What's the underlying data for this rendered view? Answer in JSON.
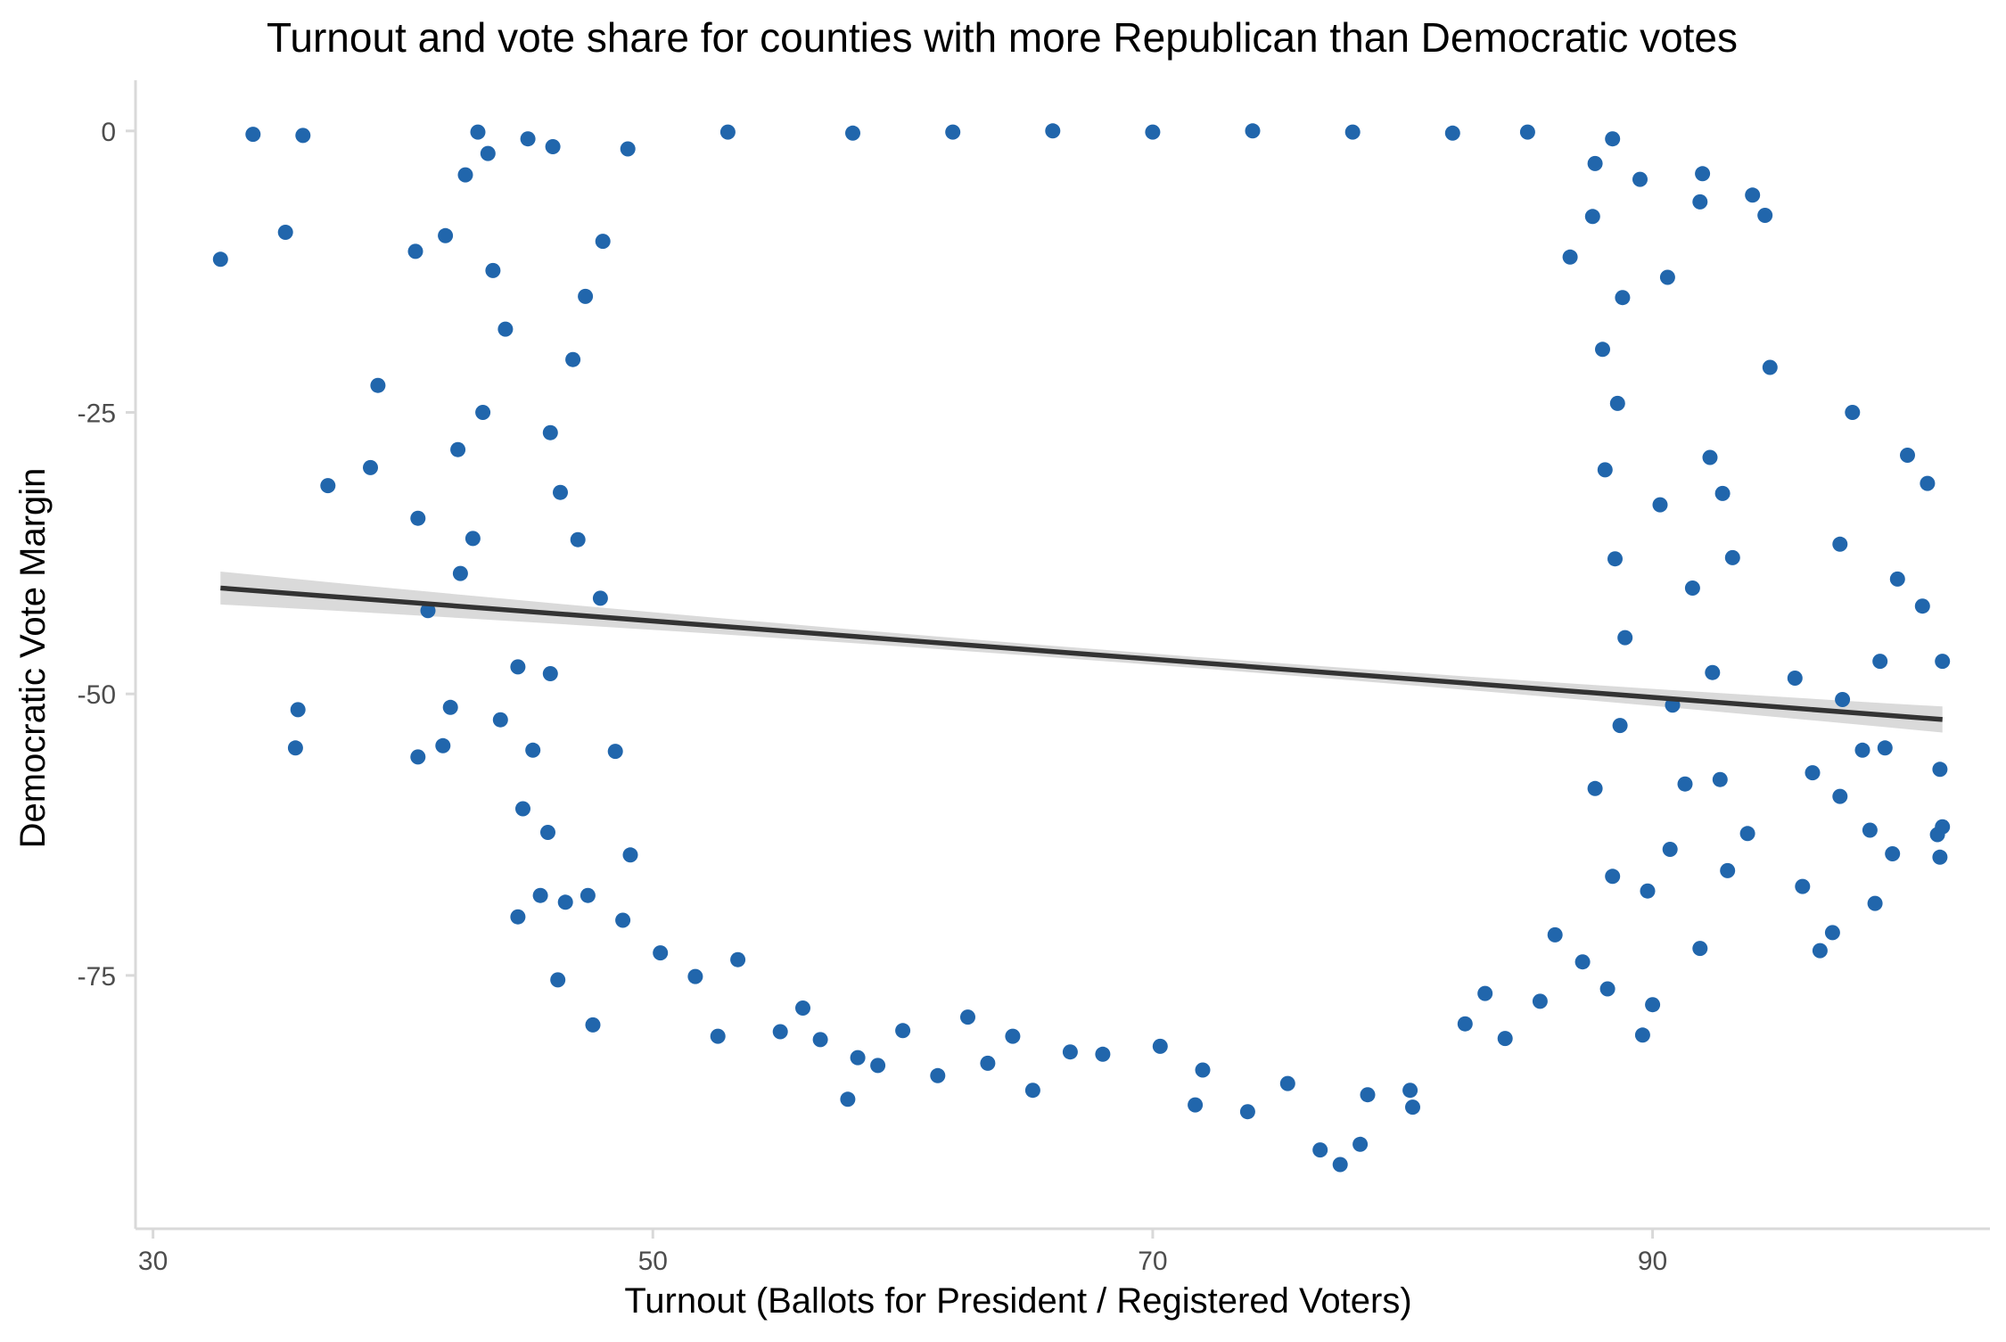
{
  "chart_data": {
    "type": "scatter",
    "title": "Turnout and vote share for counties with more Republican than Democratic votes",
    "xlabel": "Turnout (Ballots for President / Registered Voters)",
    "ylabel": "Democratic Vote Margin",
    "xlim": [
      29.3,
      103.5
    ],
    "ylim": [
      -97.5,
      4.5
    ],
    "x_ticks": [
      30,
      50,
      70,
      90
    ],
    "y_ticks": [
      0,
      -25,
      -50,
      -75
    ],
    "grid": false,
    "legend": "none",
    "colors": {
      "points": "#2166ac",
      "trend": "#333333",
      "band": "#d4d4d4",
      "axis": "#d9d9d9",
      "text": "#000000",
      "tick_text": "#4d4d4d"
    },
    "points": [
      {
        "x": 32.7,
        "y": -11.4
      },
      {
        "x": 34.0,
        "y": -0.3
      },
      {
        "x": 35.3,
        "y": -9.0
      },
      {
        "x": 35.8,
        "y": -51.4
      },
      {
        "x": 35.7,
        "y": -54.8
      },
      {
        "x": 36.0,
        "y": -0.4
      },
      {
        "x": 37.0,
        "y": -31.5
      },
      {
        "x": 38.7,
        "y": -29.9
      },
      {
        "x": 39.0,
        "y": -22.6
      },
      {
        "x": 40.5,
        "y": -10.7
      },
      {
        "x": 40.6,
        "y": -34.4
      },
      {
        "x": 40.6,
        "y": -55.6
      },
      {
        "x": 41.0,
        "y": -42.6
      },
      {
        "x": 41.6,
        "y": -54.6
      },
      {
        "x": 41.9,
        "y": -51.2
      },
      {
        "x": 41.7,
        "y": -9.3
      },
      {
        "x": 42.2,
        "y": -28.3
      },
      {
        "x": 42.3,
        "y": -39.3
      },
      {
        "x": 42.5,
        "y": -3.9
      },
      {
        "x": 42.8,
        "y": -36.2
      },
      {
        "x": 43.0,
        "y": -0.1
      },
      {
        "x": 43.2,
        "y": -25.0
      },
      {
        "x": 43.6,
        "y": -12.4
      },
      {
        "x": 43.9,
        "y": -52.3
      },
      {
        "x": 44.1,
        "y": -17.6
      },
      {
        "x": 44.6,
        "y": -47.6
      },
      {
        "x": 44.6,
        "y": -69.8
      },
      {
        "x": 44.8,
        "y": -60.2
      },
      {
        "x": 45.5,
        "y": -67.9
      },
      {
        "x": 45.8,
        "y": -62.3
      },
      {
        "x": 46.2,
        "y": -75.4
      },
      {
        "x": 46.5,
        "y": -68.5
      },
      {
        "x": 47.4,
        "y": -67.9
      },
      {
        "x": 47.6,
        "y": -79.4
      },
      {
        "x": 45.2,
        "y": -55.0
      },
      {
        "x": 45.9,
        "y": -48.2
      },
      {
        "x": 52.6,
        "y": -80.4
      },
      {
        "x": 55.1,
        "y": -80.0
      },
      {
        "x": 57.8,
        "y": -86.0
      },
      {
        "x": 58.2,
        "y": -82.3
      },
      {
        "x": 59.0,
        "y": -83.0
      },
      {
        "x": 61.4,
        "y": -83.9
      },
      {
        "x": 63.4,
        "y": -82.8
      },
      {
        "x": 65.2,
        "y": -85.2
      },
      {
        "x": 66.7,
        "y": -81.8
      },
      {
        "x": 71.7,
        "y": -86.5
      },
      {
        "x": 73.8,
        "y": -87.1
      },
      {
        "x": 76.7,
        "y": -90.5
      },
      {
        "x": 77.5,
        "y": -91.8
      },
      {
        "x": 78.3,
        "y": -90.0
      },
      {
        "x": 80.4,
        "y": -86.7
      },
      {
        "x": 80.3,
        "y": -85.2
      },
      {
        "x": 84.1,
        "y": -80.6
      },
      {
        "x": 85.5,
        "y": -77.3
      },
      {
        "x": 88.2,
        "y": -76.2
      },
      {
        "x": 89.6,
        "y": -80.3
      },
      {
        "x": 90.0,
        "y": -77.6
      },
      {
        "x": 89.8,
        "y": -67.5
      },
      {
        "x": 90.7,
        "y": -63.8
      },
      {
        "x": 90.8,
        "y": -51.0
      },
      {
        "x": 91.3,
        "y": -58.0
      },
      {
        "x": 91.6,
        "y": -40.6
      },
      {
        "x": 91.9,
        "y": -72.6
      },
      {
        "x": 92.4,
        "y": -48.1
      },
      {
        "x": 92.7,
        "y": -57.6
      },
      {
        "x": 93.0,
        "y": -65.7
      },
      {
        "x": 93.2,
        "y": -37.9
      },
      {
        "x": 93.8,
        "y": -62.4
      },
      {
        "x": 94.0,
        "y": -5.7
      },
      {
        "x": 94.5,
        "y": -7.5
      },
      {
        "x": 94.7,
        "y": -21.0
      },
      {
        "x": 95.7,
        "y": -48.6
      },
      {
        "x": 96.0,
        "y": -67.1
      },
      {
        "x": 96.4,
        "y": -57.0
      },
      {
        "x": 96.7,
        "y": -72.8
      },
      {
        "x": 97.2,
        "y": -71.2
      },
      {
        "x": 97.5,
        "y": -59.1
      },
      {
        "x": 97.6,
        "y": -50.5
      },
      {
        "x": 97.5,
        "y": -36.7
      },
      {
        "x": 98.0,
        "y": -25.0
      },
      {
        "x": 98.4,
        "y": -55.0
      },
      {
        "x": 98.7,
        "y": -62.1
      },
      {
        "x": 98.9,
        "y": -68.6
      },
      {
        "x": 99.1,
        "y": -47.1
      },
      {
        "x": 99.3,
        "y": -54.8
      },
      {
        "x": 99.6,
        "y": -64.2
      },
      {
        "x": 99.8,
        "y": -39.8
      },
      {
        "x": 100.2,
        "y": -28.8
      },
      {
        "x": 100.8,
        "y": -42.2
      },
      {
        "x": 101.0,
        "y": -31.3
      },
      {
        "x": 101.4,
        "y": -62.5
      },
      {
        "x": 101.5,
        "y": -56.7
      },
      {
        "x": 101.6,
        "y": -47.1
      },
      {
        "x": 101.6,
        "y": -61.8
      },
      {
        "x": 101.5,
        "y": -64.5
      },
      {
        "x": 92.3,
        "y": -29.0
      },
      {
        "x": 92.8,
        "y": -32.2
      },
      {
        "x": 90.3,
        "y": -33.2
      },
      {
        "x": 90.6,
        "y": -13.0
      },
      {
        "x": 91.9,
        "y": -6.3
      },
      {
        "x": 92.0,
        "y": -3.8
      },
      {
        "x": 89.5,
        "y": -4.3
      },
      {
        "x": 88.4,
        "y": -0.7
      },
      {
        "x": 87.7,
        "y": -2.9
      },
      {
        "x": 85.0,
        "y": -0.1
      },
      {
        "x": 82.0,
        "y": -0.2
      },
      {
        "x": 78.0,
        "y": -0.1
      },
      {
        "x": 74.0,
        "y": 0.0
      },
      {
        "x": 70.0,
        "y": -0.1
      },
      {
        "x": 66.0,
        "y": 0.0
      },
      {
        "x": 62.0,
        "y": -0.1
      },
      {
        "x": 58.0,
        "y": -0.2
      },
      {
        "x": 53.0,
        "y": -0.1
      },
      {
        "x": 49.0,
        "y": -1.6
      },
      {
        "x": 46.0,
        "y": -1.4
      },
      {
        "x": 45.0,
        "y": -0.7
      },
      {
        "x": 43.4,
        "y": -2.0
      },
      {
        "x": 48.0,
        "y": -9.8
      },
      {
        "x": 47.3,
        "y": -14.7
      },
      {
        "x": 46.8,
        "y": -20.3
      },
      {
        "x": 45.9,
        "y": -26.8
      },
      {
        "x": 46.3,
        "y": -32.1
      },
      {
        "x": 47.0,
        "y": -36.3
      },
      {
        "x": 47.9,
        "y": -41.5
      },
      {
        "x": 48.5,
        "y": -55.1
      },
      {
        "x": 49.1,
        "y": -64.3
      },
      {
        "x": 48.8,
        "y": -70.1
      },
      {
        "x": 50.3,
        "y": -73.0
      },
      {
        "x": 51.7,
        "y": -75.1
      },
      {
        "x": 53.4,
        "y": -73.6
      },
      {
        "x": 56.0,
        "y": -77.9
      },
      {
        "x": 56.7,
        "y": -80.7
      },
      {
        "x": 60.0,
        "y": -79.9
      },
      {
        "x": 62.6,
        "y": -78.7
      },
      {
        "x": 64.4,
        "y": -80.4
      },
      {
        "x": 68.0,
        "y": -82.0
      },
      {
        "x": 70.3,
        "y": -81.3
      },
      {
        "x": 72.0,
        "y": -83.4
      },
      {
        "x": 75.4,
        "y": -84.6
      },
      {
        "x": 78.6,
        "y": -85.6
      },
      {
        "x": 82.5,
        "y": -79.3
      },
      {
        "x": 83.3,
        "y": -76.6
      },
      {
        "x": 86.1,
        "y": -71.4
      },
      {
        "x": 87.2,
        "y": -73.8
      },
      {
        "x": 88.4,
        "y": -66.2
      },
      {
        "x": 87.7,
        "y": -58.4
      },
      {
        "x": 88.7,
        "y": -52.8
      },
      {
        "x": 88.9,
        "y": -45.0
      },
      {
        "x": 88.5,
        "y": -38.0
      },
      {
        "x": 88.1,
        "y": -30.1
      },
      {
        "x": 88.6,
        "y": -24.2
      },
      {
        "x": 88.0,
        "y": -19.4
      },
      {
        "x": 88.8,
        "y": -14.8
      },
      {
        "x": 87.6,
        "y": -7.6
      },
      {
        "x": 86.7,
        "y": -11.2
      }
    ]
  }
}
